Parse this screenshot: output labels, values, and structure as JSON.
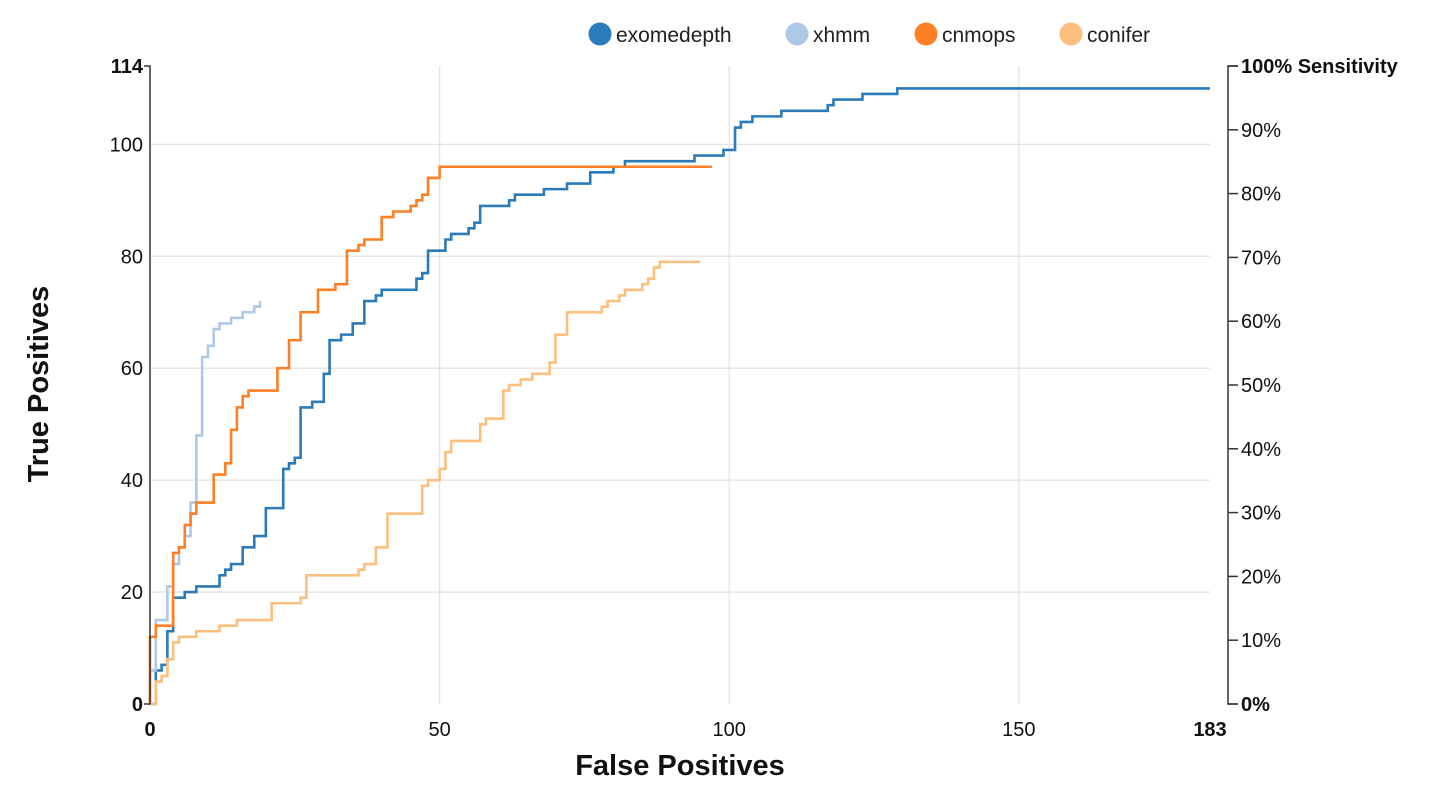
{
  "chart_data": {
    "type": "line",
    "step": true,
    "xlabel": "False Positives",
    "ylabel": "True Positives",
    "xlim": [
      0,
      183
    ],
    "ylim": [
      0,
      114
    ],
    "x_ticks": [
      {
        "value": 0,
        "label": "0",
        "bold": true
      },
      {
        "value": 50,
        "label": "50",
        "bold": false
      },
      {
        "value": 100,
        "label": "100",
        "bold": false
      },
      {
        "value": 150,
        "label": "150",
        "bold": false
      },
      {
        "value": 183,
        "label": "183",
        "bold": true
      }
    ],
    "y_ticks": [
      {
        "value": 0,
        "label": "0",
        "bold": true
      },
      {
        "value": 20,
        "label": "20",
        "bold": false
      },
      {
        "value": 40,
        "label": "40",
        "bold": false
      },
      {
        "value": 60,
        "label": "60",
        "bold": false
      },
      {
        "value": 80,
        "label": "80",
        "bold": false
      },
      {
        "value": 100,
        "label": "100",
        "bold": false
      },
      {
        "value": 114,
        "label": "114",
        "bold": true
      }
    ],
    "y2_ticks": [
      {
        "value": 0,
        "label": "0%",
        "bold": true
      },
      {
        "value": 10,
        "label": "10%",
        "bold": false
      },
      {
        "value": 20,
        "label": "20%",
        "bold": false
      },
      {
        "value": 30,
        "label": "30%",
        "bold": false
      },
      {
        "value": 40,
        "label": "40%",
        "bold": false
      },
      {
        "value": 50,
        "label": "50%",
        "bold": false
      },
      {
        "value": 60,
        "label": "60%",
        "bold": false
      },
      {
        "value": 70,
        "label": "70%",
        "bold": false
      },
      {
        "value": 80,
        "label": "80%",
        "bold": false
      },
      {
        "value": 90,
        "label": "90%",
        "bold": false
      },
      {
        "value": 100,
        "label": "100% Sensitivity",
        "bold": true
      }
    ],
    "y2lim": [
      0,
      100
    ],
    "x_gridlines": [
      50,
      100,
      150
    ],
    "y_gridlines": [
      20,
      40,
      60,
      80,
      100
    ],
    "legend_position": "top-right",
    "series": [
      {
        "name": "exomedepth",
        "color": "#2b7bba",
        "points": [
          [
            0,
            0
          ],
          [
            1,
            0
          ],
          [
            1,
            6
          ],
          [
            2,
            6
          ],
          [
            2,
            7
          ],
          [
            3,
            7
          ],
          [
            3,
            13
          ],
          [
            4,
            13
          ],
          [
            4,
            19
          ],
          [
            6,
            19
          ],
          [
            6,
            20
          ],
          [
            8,
            20
          ],
          [
            8,
            21
          ],
          [
            12,
            21
          ],
          [
            12,
            23
          ],
          [
            13,
            23
          ],
          [
            13,
            24
          ],
          [
            14,
            24
          ],
          [
            14,
            25
          ],
          [
            16,
            25
          ],
          [
            16,
            28
          ],
          [
            18,
            28
          ],
          [
            18,
            30
          ],
          [
            20,
            30
          ],
          [
            20,
            35
          ],
          [
            23,
            35
          ],
          [
            23,
            42
          ],
          [
            24,
            42
          ],
          [
            24,
            43
          ],
          [
            25,
            43
          ],
          [
            25,
            44
          ],
          [
            26,
            44
          ],
          [
            26,
            53
          ],
          [
            28,
            53
          ],
          [
            28,
            54
          ],
          [
            30,
            54
          ],
          [
            30,
            59
          ],
          [
            31,
            59
          ],
          [
            31,
            65
          ],
          [
            33,
            65
          ],
          [
            33,
            66
          ],
          [
            35,
            66
          ],
          [
            35,
            68
          ],
          [
            37,
            68
          ],
          [
            37,
            72
          ],
          [
            39,
            72
          ],
          [
            39,
            73
          ],
          [
            40,
            73
          ],
          [
            40,
            74
          ],
          [
            46,
            74
          ],
          [
            46,
            76
          ],
          [
            47,
            76
          ],
          [
            47,
            77
          ],
          [
            48,
            77
          ],
          [
            48,
            81
          ],
          [
            51,
            81
          ],
          [
            51,
            83
          ],
          [
            52,
            83
          ],
          [
            52,
            84
          ],
          [
            55,
            84
          ],
          [
            55,
            85
          ],
          [
            56,
            85
          ],
          [
            56,
            86
          ],
          [
            57,
            86
          ],
          [
            57,
            89
          ],
          [
            62,
            89
          ],
          [
            62,
            90
          ],
          [
            63,
            90
          ],
          [
            63,
            91
          ],
          [
            68,
            91
          ],
          [
            68,
            92
          ],
          [
            72,
            92
          ],
          [
            72,
            93
          ],
          [
            76,
            93
          ],
          [
            76,
            95
          ],
          [
            80,
            95
          ],
          [
            80,
            96
          ],
          [
            82,
            96
          ],
          [
            82,
            97
          ],
          [
            94,
            97
          ],
          [
            94,
            98
          ],
          [
            99,
            98
          ],
          [
            99,
            99
          ],
          [
            101,
            99
          ],
          [
            101,
            103
          ],
          [
            102,
            103
          ],
          [
            102,
            104
          ],
          [
            104,
            104
          ],
          [
            104,
            105
          ],
          [
            109,
            105
          ],
          [
            109,
            106
          ],
          [
            117,
            106
          ],
          [
            117,
            107
          ],
          [
            118,
            107
          ],
          [
            118,
            108
          ],
          [
            123,
            108
          ],
          [
            123,
            109
          ],
          [
            129,
            109
          ],
          [
            129,
            110
          ],
          [
            183,
            110
          ]
        ]
      },
      {
        "name": "xhmm",
        "color": "#aec8e8",
        "points": [
          [
            0,
            0
          ],
          [
            0,
            6
          ],
          [
            1,
            6
          ],
          [
            1,
            15
          ],
          [
            3,
            15
          ],
          [
            3,
            21
          ],
          [
            4,
            21
          ],
          [
            4,
            25
          ],
          [
            5,
            25
          ],
          [
            5,
            28
          ],
          [
            6,
            28
          ],
          [
            6,
            30
          ],
          [
            7,
            30
          ],
          [
            7,
            36
          ],
          [
            8,
            36
          ],
          [
            8,
            48
          ],
          [
            9,
            48
          ],
          [
            9,
            62
          ],
          [
            10,
            62
          ],
          [
            10,
            64
          ],
          [
            11,
            64
          ],
          [
            11,
            67
          ],
          [
            12,
            67
          ],
          [
            12,
            68
          ],
          [
            14,
            68
          ],
          [
            14,
            69
          ],
          [
            16,
            69
          ],
          [
            16,
            70
          ],
          [
            18,
            70
          ],
          [
            18,
            71
          ],
          [
            19,
            71
          ],
          [
            19,
            72
          ]
        ]
      },
      {
        "name": "cnmops",
        "color": "#ff7f24",
        "points": [
          [
            0,
            0
          ],
          [
            0,
            12
          ],
          [
            1,
            12
          ],
          [
            1,
            14
          ],
          [
            4,
            14
          ],
          [
            4,
            27
          ],
          [
            5,
            27
          ],
          [
            5,
            28
          ],
          [
            6,
            28
          ],
          [
            6,
            32
          ],
          [
            7,
            32
          ],
          [
            7,
            34
          ],
          [
            8,
            34
          ],
          [
            8,
            36
          ],
          [
            11,
            36
          ],
          [
            11,
            41
          ],
          [
            13,
            41
          ],
          [
            13,
            43
          ],
          [
            14,
            43
          ],
          [
            14,
            49
          ],
          [
            15,
            49
          ],
          [
            15,
            53
          ],
          [
            16,
            53
          ],
          [
            16,
            55
          ],
          [
            17,
            55
          ],
          [
            17,
            56
          ],
          [
            22,
            56
          ],
          [
            22,
            60
          ],
          [
            24,
            60
          ],
          [
            24,
            65
          ],
          [
            26,
            65
          ],
          [
            26,
            70
          ],
          [
            29,
            70
          ],
          [
            29,
            74
          ],
          [
            32,
            74
          ],
          [
            32,
            75
          ],
          [
            34,
            75
          ],
          [
            34,
            81
          ],
          [
            36,
            81
          ],
          [
            36,
            82
          ],
          [
            37,
            82
          ],
          [
            37,
            83
          ],
          [
            40,
            83
          ],
          [
            40,
            87
          ],
          [
            42,
            87
          ],
          [
            42,
            88
          ],
          [
            45,
            88
          ],
          [
            45,
            89
          ],
          [
            46,
            89
          ],
          [
            46,
            90
          ],
          [
            47,
            90
          ],
          [
            47,
            91
          ],
          [
            48,
            91
          ],
          [
            48,
            94
          ],
          [
            50,
            94
          ],
          [
            50,
            96
          ],
          [
            97,
            96
          ]
        ]
      },
      {
        "name": "conifer",
        "color": "#fdbf7e",
        "points": [
          [
            0,
            0
          ],
          [
            1,
            0
          ],
          [
            1,
            4
          ],
          [
            2,
            4
          ],
          [
            2,
            5
          ],
          [
            3,
            5
          ],
          [
            3,
            8
          ],
          [
            4,
            8
          ],
          [
            4,
            11
          ],
          [
            5,
            11
          ],
          [
            5,
            12
          ],
          [
            8,
            12
          ],
          [
            8,
            13
          ],
          [
            12,
            13
          ],
          [
            12,
            14
          ],
          [
            15,
            14
          ],
          [
            15,
            15
          ],
          [
            21,
            15
          ],
          [
            21,
            18
          ],
          [
            26,
            18
          ],
          [
            26,
            19
          ],
          [
            27,
            19
          ],
          [
            27,
            23
          ],
          [
            36,
            23
          ],
          [
            36,
            24
          ],
          [
            37,
            24
          ],
          [
            37,
            25
          ],
          [
            39,
            25
          ],
          [
            39,
            28
          ],
          [
            41,
            28
          ],
          [
            41,
            34
          ],
          [
            47,
            34
          ],
          [
            47,
            39
          ],
          [
            48,
            39
          ],
          [
            48,
            40
          ],
          [
            50,
            40
          ],
          [
            50,
            42
          ],
          [
            51,
            42
          ],
          [
            51,
            45
          ],
          [
            52,
            45
          ],
          [
            52,
            47
          ],
          [
            57,
            47
          ],
          [
            57,
            50
          ],
          [
            58,
            50
          ],
          [
            58,
            51
          ],
          [
            61,
            51
          ],
          [
            61,
            56
          ],
          [
            62,
            56
          ],
          [
            62,
            57
          ],
          [
            64,
            57
          ],
          [
            64,
            58
          ],
          [
            66,
            58
          ],
          [
            66,
            59
          ],
          [
            69,
            59
          ],
          [
            69,
            61
          ],
          [
            70,
            61
          ],
          [
            70,
            66
          ],
          [
            72,
            66
          ],
          [
            72,
            70
          ],
          [
            78,
            70
          ],
          [
            78,
            71
          ],
          [
            79,
            71
          ],
          [
            79,
            72
          ],
          [
            81,
            72
          ],
          [
            81,
            73
          ],
          [
            82,
            73
          ],
          [
            82,
            74
          ],
          [
            85,
            74
          ],
          [
            85,
            75
          ],
          [
            86,
            75
          ],
          [
            86,
            76
          ],
          [
            87,
            76
          ],
          [
            87,
            78
          ],
          [
            88,
            78
          ],
          [
            88,
            79
          ],
          [
            95,
            79
          ]
        ]
      }
    ]
  }
}
